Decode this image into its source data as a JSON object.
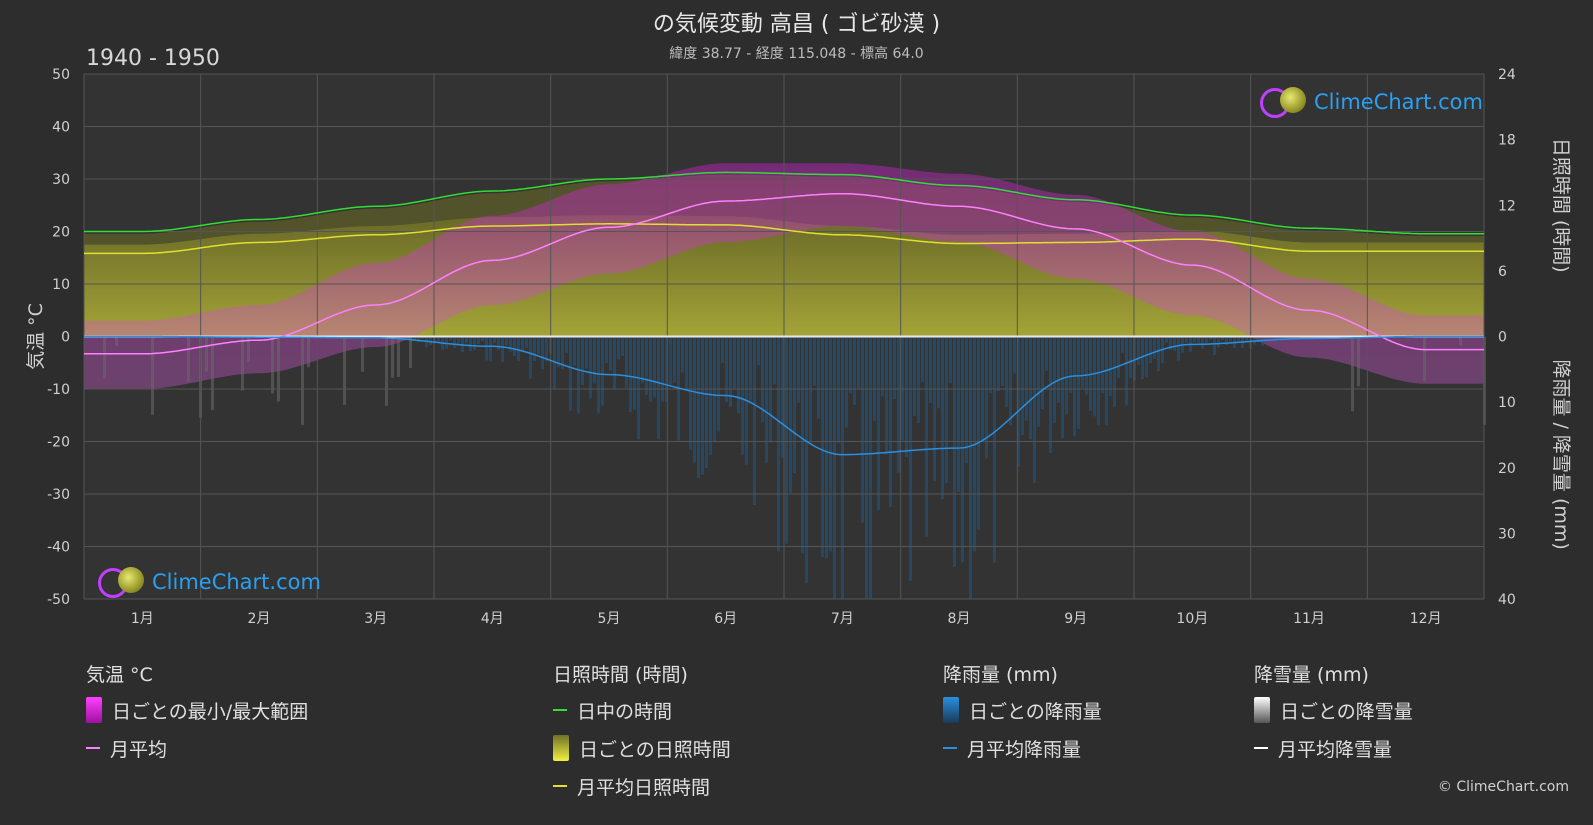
{
  "header": {
    "title": "の気候変動 高昌 ( ゴビ砂漠 )",
    "subtitle": "緯度 38.77 - 経度 115.048 - 標高 64.0",
    "years": "1940 - 1950"
  },
  "axes": {
    "left_label": "気温 °C",
    "right_top_label": "日照時間 (時間)",
    "right_bottom_label": "降雨量 / 降雪量 (mm)",
    "left_ticks": [
      "50",
      "40",
      "30",
      "20",
      "10",
      "0",
      "-10",
      "-20",
      "-30",
      "-40",
      "-50"
    ],
    "right_top_ticks": [
      "24",
      "18",
      "12",
      "6",
      "0"
    ],
    "right_bottom_ticks": [
      "10",
      "20",
      "30",
      "40"
    ]
  },
  "logo": {
    "text": "ClimeChart.com"
  },
  "legend": {
    "temp": {
      "title": "気温 °C",
      "range": "日ごとの最小/最大範囲",
      "avg": "月平均"
    },
    "sun": {
      "title": "日照時間 (時間)",
      "daylight": "日中の時間",
      "daily": "日ごとの日照時間",
      "avg": "月平均日照時間"
    },
    "rain": {
      "title": "降雨量 (mm)",
      "daily": "日ごとの降雨量",
      "avg": "月平均降雨量"
    },
    "snow": {
      "title": "降雪量 (mm)",
      "daily": "日ごとの降雪量",
      "avg": "月平均降雪量"
    }
  },
  "copyright": "© ClimeChart.com",
  "colors": {
    "background": "#2d2d2d",
    "temp_avg": "#ff80ff",
    "temp_range": "#c020c0",
    "daylight": "#33dd33",
    "sunshine": "#e0e030",
    "sunshine_fill": "#9a9a30",
    "rain": "#2a8fe0",
    "snow": "#ffffff",
    "logo_text": "#2aa0f0"
  },
  "chart_data": {
    "type": "line",
    "categories": [
      "1月",
      "2月",
      "3月",
      "4月",
      "5月",
      "6月",
      "7月",
      "8月",
      "9月",
      "10月",
      "11月",
      "12月"
    ],
    "temp_ylim": [
      -50,
      50
    ],
    "sun_ylim": [
      0,
      24
    ],
    "precip_ylim": [
      0,
      40
    ],
    "series": [
      {
        "name": "月平均",
        "axis": "temp",
        "values": [
          -3.3,
          -0.7,
          6.0,
          14.5,
          20.8,
          25.8,
          27.2,
          24.8,
          20.5,
          13.6,
          5.0,
          -2.5
        ]
      },
      {
        "name": "日中の時間",
        "axis": "sun",
        "values": [
          9.6,
          10.7,
          11.9,
          13.3,
          14.4,
          15.0,
          14.8,
          13.8,
          12.5,
          11.1,
          9.9,
          9.4
        ]
      },
      {
        "name": "月平均日照時間",
        "axis": "sun",
        "values": [
          7.6,
          8.6,
          9.3,
          10.1,
          10.3,
          10.2,
          9.3,
          8.5,
          8.6,
          8.9,
          7.8,
          7.8
        ]
      },
      {
        "name": "月平均降雨量",
        "axis": "precip",
        "values": [
          0.0,
          0.1,
          0.2,
          1.5,
          5.8,
          9.0,
          18.0,
          17.0,
          6.0,
          1.2,
          0.3,
          0.0
        ]
      },
      {
        "name": "月平均降雪量",
        "axis": "precip",
        "values": [
          0.2,
          0.1,
          0.1,
          0.0,
          0.0,
          0.0,
          0.0,
          0.0,
          0.0,
          0.0,
          0.1,
          0.2
        ]
      }
    ],
    "temp_daily_range_approx": {
      "min": [
        -10,
        -7,
        -2,
        6,
        12,
        18,
        21,
        18,
        11,
        4,
        -4,
        -9
      ],
      "max": [
        3,
        6,
        14,
        23,
        29,
        33,
        33,
        31,
        27,
        20,
        11,
        4
      ]
    }
  }
}
